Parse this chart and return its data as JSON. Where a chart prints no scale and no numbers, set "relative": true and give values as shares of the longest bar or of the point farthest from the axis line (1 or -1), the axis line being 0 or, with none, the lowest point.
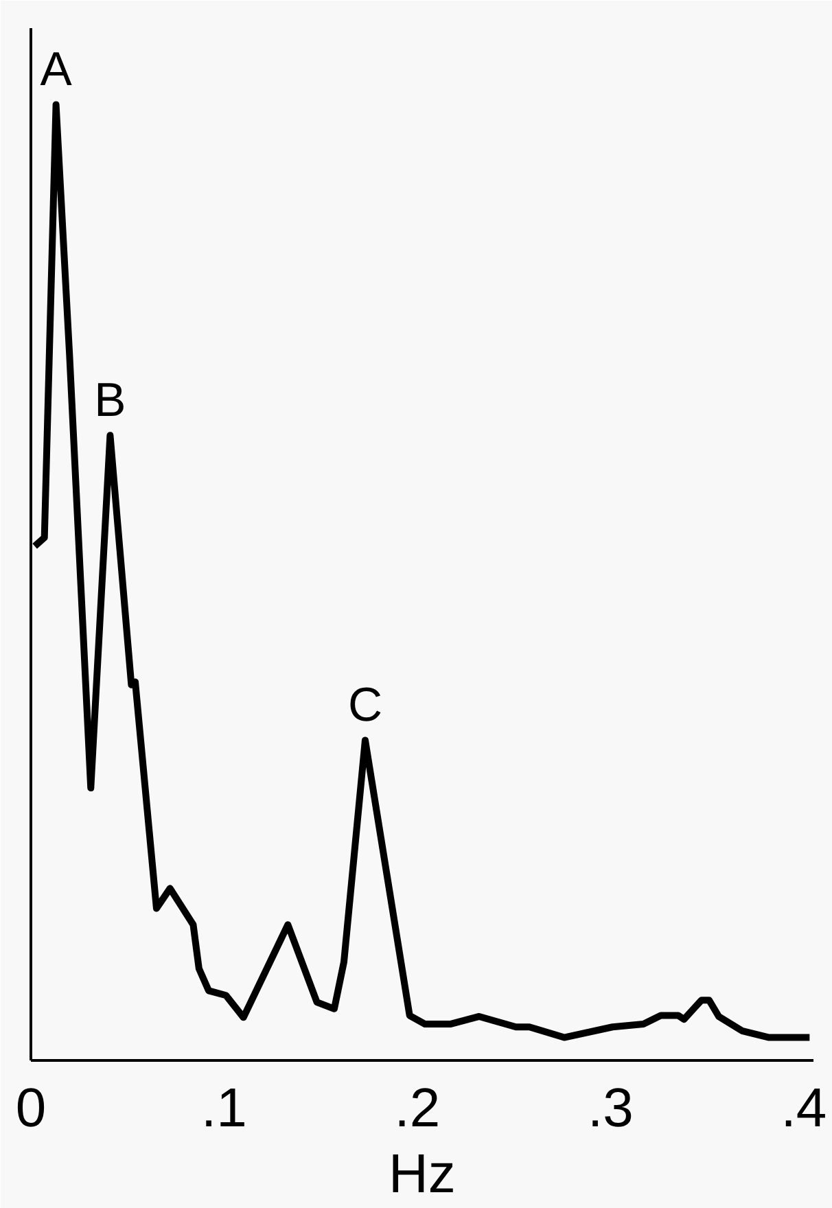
{
  "chart_data": {
    "type": "line",
    "xlabel": "Hz",
    "relative": true,
    "xlim": [
      0,
      0.405
    ],
    "xticks": [
      0,
      {
        "value": 0.1,
        "label": ".1"
      },
      {
        "value": 0.2,
        "label": ".2"
      },
      {
        "value": 0.3,
        "label": ".3"
      },
      {
        "value": 0.4,
        "label": ".4"
      }
    ],
    "grid": false,
    "tick_labels": "x",
    "annotations": [
      {
        "text": "A",
        "x": 0.013,
        "y": 1.0
      },
      {
        "text": "B",
        "x": 0.041,
        "y": 0.654
      },
      {
        "text": "C",
        "x": 0.173,
        "y": 0.335
      }
    ],
    "series": [
      {
        "color": "#000000",
        "x": [
          0.002,
          0.007,
          0.013,
          0.02,
          0.031,
          0.041,
          0.052,
          0.054,
          0.065,
          0.072,
          0.084,
          0.087,
          0.092,
          0.101,
          0.11,
          0.133,
          0.148,
          0.157,
          0.162,
          0.173,
          0.196,
          0.204,
          0.217,
          0.232,
          0.251,
          0.258,
          0.276,
          0.301,
          0.317,
          0.326,
          0.335,
          0.338,
          0.347,
          0.351,
          0.356,
          0.368,
          0.382,
          0.403
        ],
        "values": [
          0.538,
          0.547,
          1.0,
          0.738,
          0.285,
          0.654,
          0.393,
          0.396,
          0.159,
          0.18,
          0.142,
          0.096,
          0.073,
          0.068,
          0.045,
          0.142,
          0.061,
          0.054,
          0.103,
          0.335,
          0.047,
          0.038,
          0.038,
          0.046,
          0.035,
          0.035,
          0.024,
          0.035,
          0.038,
          0.047,
          0.047,
          0.043,
          0.063,
          0.063,
          0.046,
          0.031,
          0.024,
          0.024
        ]
      }
    ]
  }
}
